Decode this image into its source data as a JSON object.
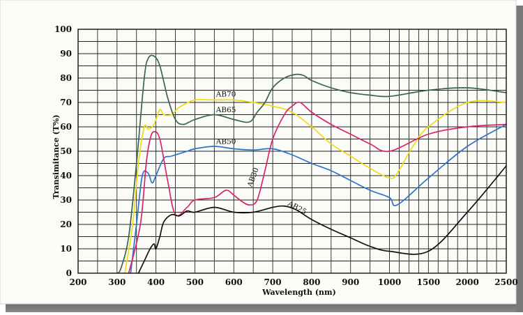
{
  "chart_data": {
    "type": "line",
    "xlabel": "Wavelength  (nm)",
    "ylabel": "Transimitance  (T%)",
    "ylim": [
      0,
      100
    ],
    "yticks": [
      "0",
      "10",
      "20",
      "30",
      "40",
      "50",
      "60",
      "70",
      "80",
      "90",
      "100"
    ],
    "xticks": [
      "200",
      "300",
      "400",
      "500",
      "600",
      "700",
      "800",
      "900",
      "1000",
      "1500",
      "2000",
      "2500"
    ],
    "grid": true,
    "colors": {
      "AB70": "#f0dc10",
      "AB65": "#3a6450",
      "AB50": "#2e72c8",
      "AB30": "#d8246a",
      "AB25": "#111111"
    },
    "series": [
      {
        "name": "AB70",
        "x": [
          320,
          340,
          355,
          370,
          380,
          395,
          410,
          420,
          440,
          460,
          500,
          550,
          600,
          650,
          700,
          750,
          800,
          850,
          900,
          950,
          1000,
          1100,
          1300,
          1500,
          2000,
          2500
        ],
        "y": [
          0,
          20,
          45,
          60,
          59,
          61,
          67,
          65,
          65,
          68,
          71,
          71,
          71,
          70,
          68.5,
          66,
          60,
          53,
          48,
          43,
          39,
          41,
          52,
          60,
          70,
          70
        ]
      },
      {
        "name": "AB65",
        "x": [
          300,
          310,
          330,
          350,
          370,
          380,
          395,
          410,
          430,
          450,
          470,
          500,
          550,
          600,
          640,
          660,
          680,
          700,
          730,
          760,
          780,
          800,
          850,
          900,
          950,
          1000,
          1500,
          2000,
          2500
        ],
        "y": [
          0,
          2,
          15,
          45,
          80,
          88,
          89,
          85,
          72,
          63,
          61,
          63,
          65,
          63,
          62,
          66,
          70,
          76,
          80,
          81.5,
          81,
          79,
          76,
          74,
          73,
          72.5,
          75,
          76,
          74
        ]
      },
      {
        "name": "AB50",
        "x": [
          335,
          350,
          365,
          380,
          390,
          400,
          420,
          440,
          480,
          500,
          550,
          600,
          650,
          700,
          750,
          800,
          850,
          900,
          950,
          1000,
          1100,
          1500,
          2000,
          2500
        ],
        "y": [
          0,
          20,
          40,
          41,
          37,
          40,
          47,
          48,
          50,
          51,
          52,
          51,
          50.5,
          51,
          48.5,
          45,
          42,
          38,
          34,
          31,
          28,
          39,
          52,
          61
        ]
      },
      {
        "name": "AB30",
        "x": [
          330,
          360,
          375,
          385,
          395,
          410,
          430,
          450,
          480,
          500,
          550,
          580,
          600,
          620,
          640,
          660,
          680,
          700,
          730,
          750,
          770,
          800,
          850,
          900,
          950,
          1000,
          1500,
          2000,
          2500
        ],
        "y": [
          0,
          20,
          45,
          55,
          58,
          55,
          38,
          24,
          27,
          30,
          31,
          34,
          32,
          29.5,
          28,
          30,
          42,
          55,
          65,
          68.5,
          70,
          66,
          61,
          57,
          53,
          50,
          57,
          60,
          61
        ]
      },
      {
        "name": "AB25",
        "x": [
          355,
          370,
          385,
          395,
          400,
          410,
          420,
          440,
          460,
          480,
          500,
          550,
          600,
          650,
          700,
          730,
          760,
          800,
          850,
          900,
          950,
          1000,
          1500,
          2000,
          2500
        ],
        "y": [
          0,
          5,
          10,
          12,
          10,
          15,
          21,
          24,
          23.5,
          25.5,
          25,
          27,
          25,
          25,
          27,
          27.5,
          26,
          22,
          18,
          14.5,
          11,
          9,
          9,
          25,
          44
        ]
      }
    ],
    "annotations": [
      {
        "series": "AB70",
        "text": "AB70",
        "x": 580,
        "y": 72.5,
        "rotate": 0
      },
      {
        "series": "AB65",
        "text": "AB65",
        "x": 580,
        "y": 66,
        "rotate": 0
      },
      {
        "series": "AB50",
        "text": "AB50",
        "x": 580,
        "y": 53,
        "rotate": 0
      },
      {
        "series": "AB30",
        "text": "AB30",
        "x": 655,
        "y": 39,
        "rotate": -70
      },
      {
        "series": "AB25",
        "text": "AB25",
        "x": 760,
        "y": 26,
        "rotate": 28
      }
    ]
  }
}
